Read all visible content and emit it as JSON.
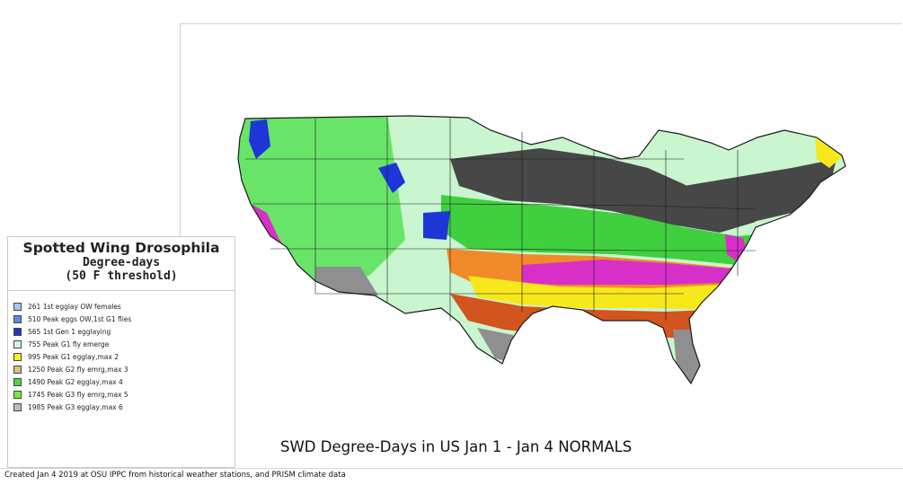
{
  "legend": {
    "title": "Spotted Wing Drosophila",
    "subtitle_line1": "Degree-days",
    "subtitle_line2": "(50 F threshold)",
    "items": [
      {
        "label": "261 1st egglay OW females",
        "color": "#a7c8f2"
      },
      {
        "label": "510 Peak eggs OW,1st G1 flies",
        "color": "#5b8be0"
      },
      {
        "label": "565 1st Gen 1 egglaying",
        "color": "#1e36d8"
      },
      {
        "label": "755 Peak G1 fly emerge",
        "color": "#d6f5dc"
      },
      {
        "label": "995 Peak G1 egglay,max 2",
        "color": "#f7f01a"
      },
      {
        "label": "1250 Peak G2 fly emrg,max 3",
        "color": "#d2c080"
      },
      {
        "label": "1490 Peak G2 egglay,max 4",
        "color": "#4bd24b"
      },
      {
        "label": "1745 Peak G3 fly emrg,max 5",
        "color": "#6cf03c"
      },
      {
        "label": "1985 Peak G3 egglay,max 6",
        "color": "#bdbdbd"
      }
    ]
  },
  "map": {
    "title": "SWD Degree-Days in US  Jan 1 - Jan 4 NORMALS",
    "palette": {
      "north_light": "#c9f5cf",
      "mid_green": "#68e468",
      "bright_green": "#3fcf3f",
      "dark_gray": "#474747",
      "magenta": "#d82fc9",
      "orange": "#f08a2a",
      "dark_orange": "#d2541e",
      "yellow": "#f7e81c",
      "gray": "#8f8f8f",
      "blue": "#1e36d8",
      "state_line": "#1a1a1a"
    }
  },
  "footer": {
    "credits": "Created Jan 4 2019 at OSU IPPC from  historical weather stations, and PRISM climate data"
  }
}
